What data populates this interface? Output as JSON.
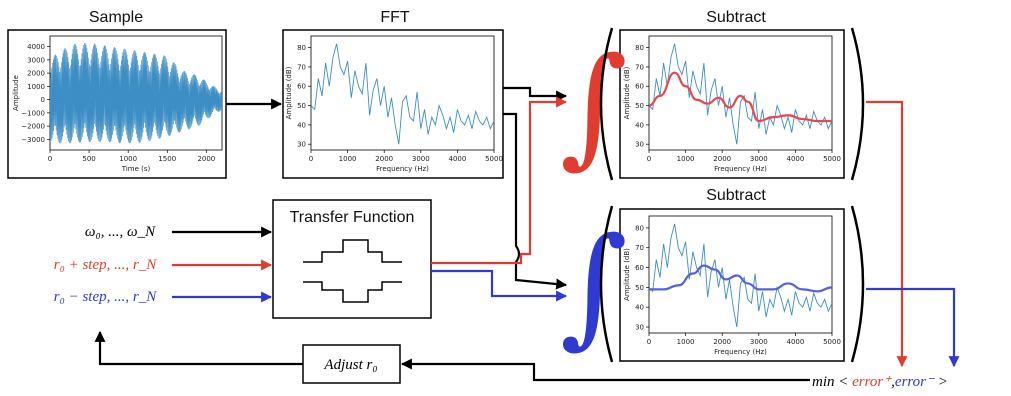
{
  "titles": {
    "sample": "Sample",
    "fft": "FFT",
    "subtract_top": "Subtract",
    "subtract_bottom": "Subtract"
  },
  "transfer_function": {
    "label": "Transfer Function"
  },
  "inputs": {
    "omega": "ω₀, ..., ω_N",
    "plus": "r₀ + step, ..., r_N",
    "minus": "r₀ − step, ..., r_N"
  },
  "adjust": {
    "label": "Adjust r₀"
  },
  "min_expr": {
    "prefix": "min < ",
    "error_plus": "error⁺",
    "comma": ",",
    "error_minus": "error⁻",
    "suffix": " >"
  },
  "colors": {
    "black": "#000000",
    "red": "#e03c2f",
    "blue": "#2f3ad0",
    "plot_line": "#3c8ec4",
    "fit_red": "#e8474f",
    "fit_blue": "#5560e0"
  },
  "chart_data": [
    {
      "id": "sample",
      "type": "line",
      "xlabel": "Time (s)",
      "ylabel": "Amplitude",
      "xlim": [
        0,
        2200
      ],
      "ylim": [
        -3800,
        4800
      ],
      "xticks": [
        0,
        500,
        1000,
        1500,
        2000
      ],
      "yticks": [
        -3000,
        -2000,
        -1000,
        0,
        1000,
        2000,
        3000,
        4000
      ],
      "envelope": {
        "x": [
          0,
          100,
          300,
          500,
          700,
          900,
          1100,
          1300,
          1500,
          1700,
          1900,
          2100,
          2200
        ],
        "upper": [
          3000,
          3600,
          4200,
          4300,
          4100,
          3900,
          3700,
          3500,
          3300,
          2200,
          1800,
          1000,
          700
        ],
        "lower": [
          -3200,
          -3300,
          -3300,
          -3200,
          -3200,
          -3300,
          -3300,
          -3100,
          -2800,
          -2400,
          -2000,
          -1100,
          -800
        ]
      }
    },
    {
      "id": "fft",
      "type": "line",
      "xlabel": "Frequency (Hz)",
      "ylabel": "Amplitude (dB)",
      "xlim": [
        0,
        5000
      ],
      "ylim": [
        27,
        86
      ],
      "xticks": [
        0,
        1000,
        2000,
        3000,
        4000,
        5000
      ],
      "yticks": [
        30,
        40,
        50,
        60,
        70,
        80
      ],
      "x": [
        0,
        100,
        200,
        300,
        400,
        500,
        600,
        700,
        800,
        900,
        1000,
        1100,
        1200,
        1300,
        1400,
        1500,
        1600,
        1700,
        1800,
        1900,
        2000,
        2100,
        2200,
        2300,
        2400,
        2500,
        2600,
        2700,
        2800,
        2900,
        3000,
        3100,
        3200,
        3300,
        3400,
        3500,
        3600,
        3700,
        3800,
        3900,
        4000,
        4100,
        4200,
        4300,
        4400,
        4500,
        4600,
        4700,
        4800,
        4900,
        5000
      ],
      "y": [
        50,
        48,
        64,
        55,
        72,
        60,
        75,
        82,
        70,
        66,
        73,
        54,
        68,
        60,
        56,
        72,
        45,
        58,
        64,
        50,
        60,
        44,
        54,
        40,
        30,
        52,
        55,
        44,
        42,
        57,
        38,
        48,
        35,
        44,
        40,
        50,
        45,
        38,
        44,
        36,
        48,
        42,
        40,
        45,
        38,
        47,
        42,
        40,
        44,
        38,
        42
      ]
    },
    {
      "id": "subtract_top",
      "type": "line",
      "xlabel": "Frequency (Hz)",
      "ylabel": "Amplitude (dB)",
      "xlim": [
        0,
        5000
      ],
      "ylim": [
        27,
        86
      ],
      "xticks": [
        0,
        1000,
        2000,
        3000,
        4000,
        5000
      ],
      "yticks": [
        30,
        40,
        50,
        60,
        70,
        80
      ],
      "x": [
        0,
        100,
        200,
        300,
        400,
        500,
        600,
        700,
        800,
        900,
        1000,
        1100,
        1200,
        1300,
        1400,
        1500,
        1600,
        1700,
        1800,
        1900,
        2000,
        2100,
        2200,
        2300,
        2400,
        2500,
        2600,
        2700,
        2800,
        2900,
        3000,
        3100,
        3200,
        3300,
        3400,
        3500,
        3600,
        3700,
        3800,
        3900,
        4000,
        4100,
        4200,
        4300,
        4400,
        4500,
        4600,
        4700,
        4800,
        4900,
        5000
      ],
      "y": [
        50,
        48,
        64,
        55,
        72,
        60,
        75,
        82,
        70,
        66,
        73,
        54,
        68,
        60,
        56,
        72,
        45,
        58,
        64,
        50,
        60,
        44,
        54,
        40,
        30,
        52,
        55,
        44,
        42,
        57,
        38,
        48,
        35,
        44,
        40,
        50,
        45,
        38,
        44,
        36,
        48,
        42,
        40,
        45,
        38,
        47,
        42,
        40,
        44,
        38,
        42
      ],
      "fit": {
        "x": [
          0,
          300,
          700,
          1000,
          1300,
          1600,
          1900,
          2200,
          2500,
          2700,
          3000,
          3400,
          3800,
          4200,
          4600,
          5000
        ],
        "y": [
          50,
          55,
          67,
          60,
          53,
          51,
          54,
          49,
          55,
          52,
          42,
          44,
          45,
          43,
          42,
          42
        ]
      }
    },
    {
      "id": "subtract_bottom",
      "type": "line",
      "xlabel": "Frequency (Hz)",
      "ylabel": "Amplitude (dB)",
      "xlim": [
        0,
        5000
      ],
      "ylim": [
        27,
        86
      ],
      "xticks": [
        0,
        1000,
        2000,
        3000,
        4000,
        5000
      ],
      "yticks": [
        30,
        40,
        50,
        60,
        70,
        80
      ],
      "x": [
        0,
        100,
        200,
        300,
        400,
        500,
        600,
        700,
        800,
        900,
        1000,
        1100,
        1200,
        1300,
        1400,
        1500,
        1600,
        1700,
        1800,
        1900,
        2000,
        2100,
        2200,
        2300,
        2400,
        2500,
        2600,
        2700,
        2800,
        2900,
        3000,
        3100,
        3200,
        3300,
        3400,
        3500,
        3600,
        3700,
        3800,
        3900,
        4000,
        4100,
        4200,
        4300,
        4400,
        4500,
        4600,
        4700,
        4800,
        4900,
        5000
      ],
      "y": [
        50,
        48,
        64,
        55,
        72,
        60,
        75,
        82,
        70,
        66,
        73,
        54,
        68,
        60,
        56,
        72,
        45,
        58,
        64,
        50,
        60,
        44,
        54,
        40,
        30,
        52,
        55,
        44,
        42,
        57,
        38,
        48,
        35,
        44,
        40,
        50,
        45,
        38,
        44,
        36,
        48,
        42,
        40,
        45,
        38,
        47,
        42,
        40,
        44,
        38,
        42
      ],
      "fit": {
        "x": [
          0,
          400,
          800,
          1200,
          1500,
          1800,
          2100,
          2400,
          2700,
          3000,
          3400,
          3800,
          4200,
          4600,
          5000
        ],
        "y": [
          49,
          49,
          51,
          57,
          61,
          59,
          54,
          56,
          52,
          49,
          49,
          52,
          49,
          48,
          50
        ]
      }
    }
  ]
}
